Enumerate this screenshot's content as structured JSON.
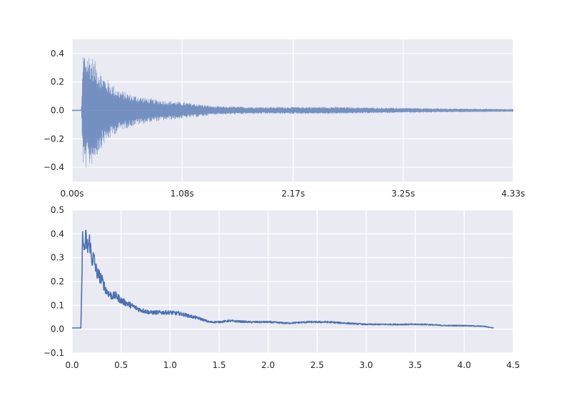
{
  "colors": {
    "background": "#eaeaf2",
    "grid": "#ffffff",
    "waveform": "#4c72b0",
    "envelope": "#4c72b0"
  },
  "chart_data": [
    {
      "type": "line",
      "description": "waveform",
      "xlim": [
        0,
        4.33
      ],
      "ylim": [
        -0.5,
        0.5
      ],
      "xticks": [
        0.0,
        1.08,
        2.17,
        3.25,
        4.33
      ],
      "xtick_labels": [
        "0.00s",
        "1.08s",
        "2.17s",
        "3.25s",
        "4.33s"
      ],
      "yticks": [
        -0.4,
        -0.2,
        0.0,
        0.2,
        0.4
      ],
      "ytick_labels": [
        "−0.4",
        "−0.2",
        "0.0",
        "0.2",
        "0.4"
      ],
      "onset": 0.1,
      "peak": 0.43,
      "envelope_keypoints": [
        [
          0.0,
          0.005
        ],
        [
          0.09,
          0.005
        ],
        [
          0.11,
          0.43
        ],
        [
          0.2,
          0.38
        ],
        [
          0.3,
          0.25
        ],
        [
          0.45,
          0.15
        ],
        [
          0.6,
          0.11
        ],
        [
          0.8,
          0.08
        ],
        [
          1.0,
          0.065
        ],
        [
          1.2,
          0.05
        ],
        [
          1.4,
          0.03
        ],
        [
          1.8,
          0.025
        ],
        [
          2.2,
          0.025
        ],
        [
          2.6,
          0.025
        ],
        [
          3.0,
          0.02
        ],
        [
          3.5,
          0.015
        ],
        [
          4.0,
          0.012
        ],
        [
          4.33,
          0.01
        ]
      ],
      "grid": true
    },
    {
      "type": "line",
      "description": "amplitude envelope",
      "xlim": [
        0.0,
        4.5
      ],
      "ylim": [
        -0.1,
        0.5
      ],
      "xticks": [
        0.0,
        0.5,
        1.0,
        1.5,
        2.0,
        2.5,
        3.0,
        3.5,
        4.0,
        4.5
      ],
      "xtick_labels": [
        "0.0",
        "0.5",
        "1.0",
        "1.5",
        "2.0",
        "2.5",
        "3.0",
        "3.5",
        "4.0",
        "4.5"
      ],
      "yticks": [
        -0.1,
        0.0,
        0.1,
        0.2,
        0.3,
        0.4,
        0.5
      ],
      "ytick_labels": [
        "−0.1",
        "0.0",
        "0.1",
        "0.2",
        "0.3",
        "0.4",
        "0.5"
      ],
      "x": [
        0.0,
        0.09,
        0.11,
        0.12,
        0.14,
        0.16,
        0.18,
        0.2,
        0.22,
        0.25,
        0.3,
        0.35,
        0.4,
        0.45,
        0.5,
        0.6,
        0.7,
        0.8,
        0.9,
        1.0,
        1.1,
        1.2,
        1.3,
        1.4,
        1.5,
        1.6,
        1.8,
        2.0,
        2.2,
        2.4,
        2.6,
        2.8,
        3.0,
        3.2,
        3.4,
        3.6,
        3.8,
        4.0,
        4.2,
        4.3
      ],
      "y": [
        0.005,
        0.005,
        0.43,
        0.32,
        0.38,
        0.34,
        0.37,
        0.29,
        0.3,
        0.24,
        0.21,
        0.16,
        0.14,
        0.14,
        0.12,
        0.1,
        0.08,
        0.07,
        0.07,
        0.07,
        0.065,
        0.055,
        0.045,
        0.03,
        0.03,
        0.035,
        0.03,
        0.03,
        0.025,
        0.03,
        0.03,
        0.025,
        0.02,
        0.02,
        0.02,
        0.02,
        0.015,
        0.015,
        0.012,
        0.005
      ],
      "grid": true
    }
  ]
}
